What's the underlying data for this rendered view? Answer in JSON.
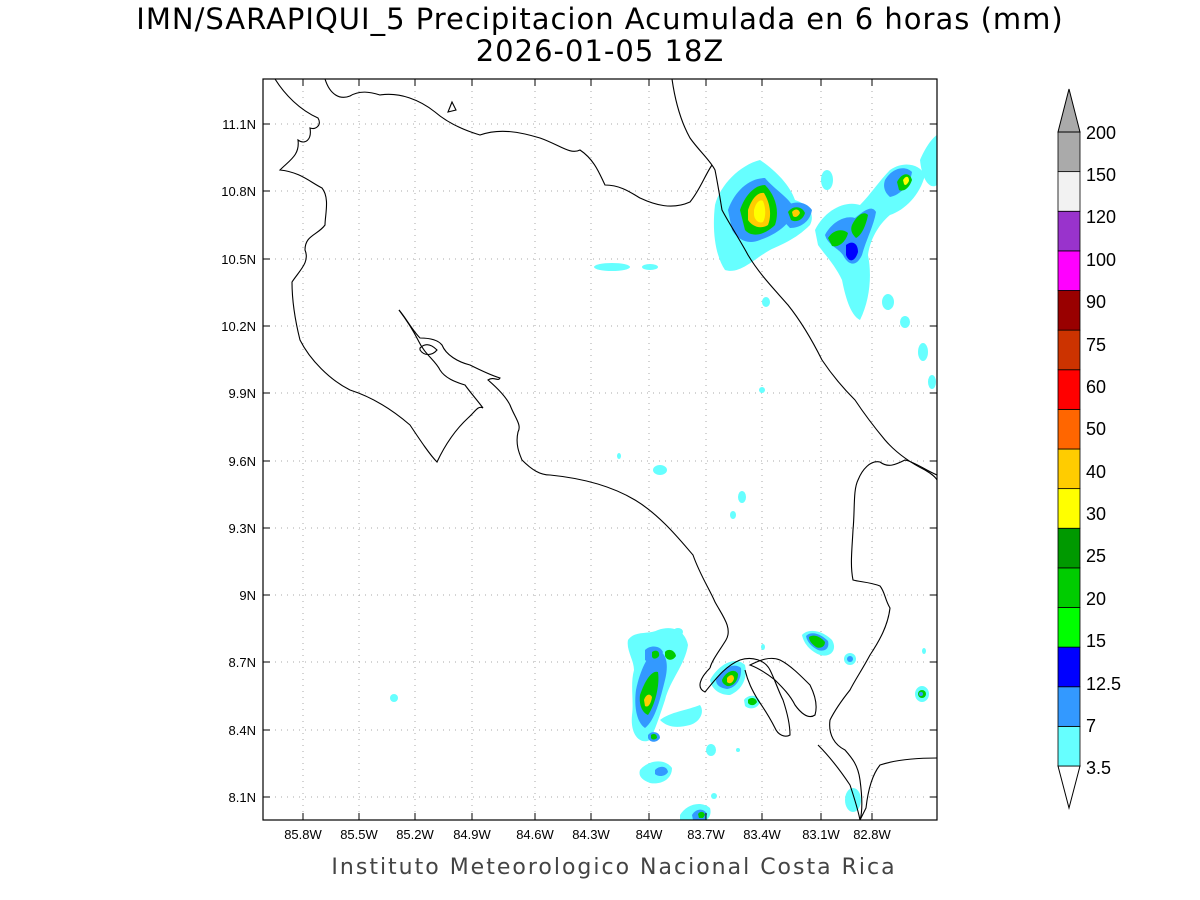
{
  "title": {
    "line1": "IMN/SARAPIQUI_5 Precipitacion Acumulada en 6 horas (mm)",
    "line2": "2026-01-05 18Z"
  },
  "footer": "Instituto Meteorologico Nacional Costa Rica",
  "axes": {
    "lat_labels": [
      "8.1N",
      "8.4N",
      "8.7N",
      "9N",
      "9.3N",
      "9.6N",
      "9.9N",
      "10.2N",
      "10.5N",
      "10.8N",
      "11.1N"
    ],
    "lon_labels": [
      "85.8W",
      "85.5W",
      "85.2W",
      "84.9W",
      "84.6W",
      "84.3W",
      "84W",
      "83.7W",
      "83.4W",
      "83.1W",
      "82.8W"
    ],
    "grid": true
  },
  "legend": {
    "unit": "mm",
    "labels": [
      "3.5",
      "7",
      "12.5",
      "15",
      "20",
      "25",
      "30",
      "40",
      "50",
      "60",
      "75",
      "90",
      "100",
      "120",
      "150",
      "200"
    ],
    "colors": [
      "#66ffff",
      "#3399ff",
      "#0000ff",
      "#00ff00",
      "#00cc00",
      "#009900",
      "#ffff00",
      "#ffcc00",
      "#ff6600",
      "#ff0000",
      "#cc3300",
      "#990000",
      "#ff00ff",
      "#9933cc",
      "#f2f2f2",
      "#aaaaaa"
    ]
  }
}
